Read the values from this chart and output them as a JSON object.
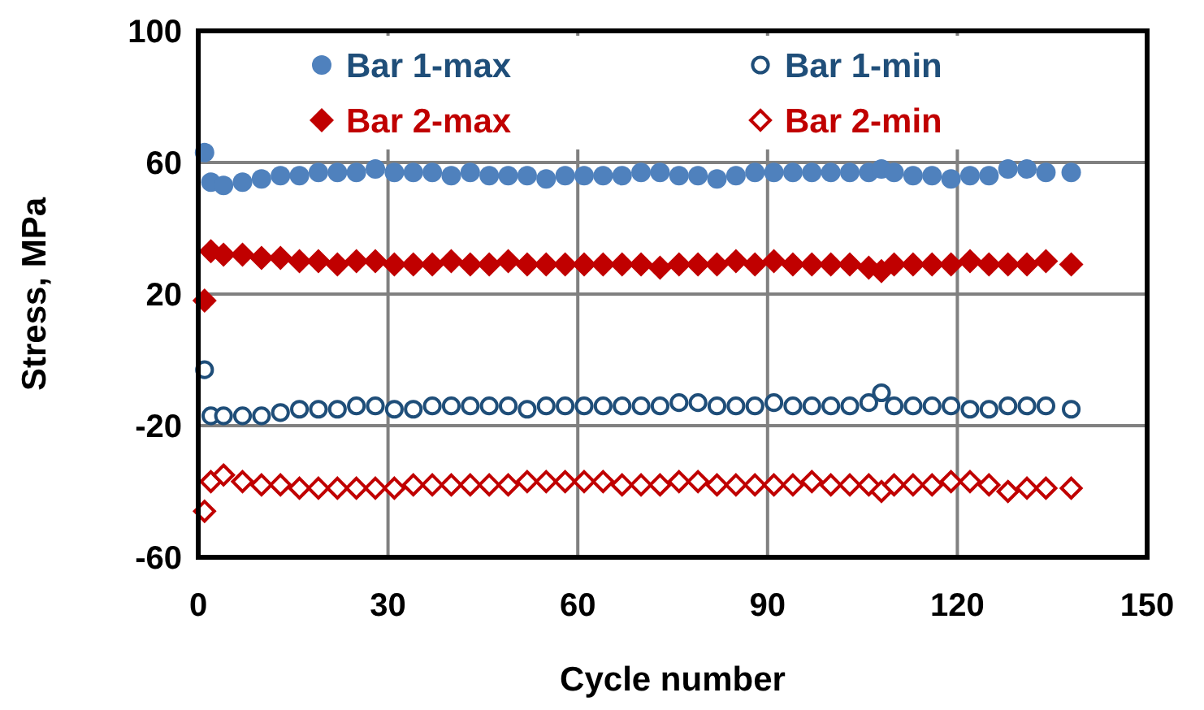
{
  "chart_data": {
    "type": "scatter",
    "xlabel": "Cycle number",
    "ylabel": "Stress, MPa",
    "x": [
      1,
      2,
      4,
      7,
      10,
      13,
      16,
      19,
      22,
      25,
      28,
      31,
      34,
      37,
      40,
      43,
      46,
      49,
      52,
      55,
      58,
      61,
      64,
      67,
      70,
      73,
      76,
      79,
      82,
      85,
      88,
      91,
      94,
      97,
      100,
      103,
      106,
      108,
      110,
      113,
      116,
      119,
      122,
      125,
      128,
      131,
      134,
      138
    ],
    "xlim": [
      0,
      150
    ],
    "xticks": [
      0,
      30,
      60,
      90,
      120,
      150
    ],
    "ylim": [
      -60,
      100
    ],
    "yticks": [
      -60,
      -20,
      20,
      60,
      100
    ],
    "grid": true,
    "legend": "top",
    "series": [
      {
        "name": "Bar 1-max",
        "color": "#4f81bd",
        "marker": "circle",
        "values": [
          63,
          54,
          53,
          54,
          55,
          56,
          56,
          57,
          57,
          57,
          58,
          57,
          57,
          57,
          56,
          57,
          56,
          56,
          56,
          55,
          56,
          56,
          56,
          56,
          57,
          57,
          56,
          56,
          55,
          56,
          57,
          57,
          57,
          57,
          57,
          57,
          57,
          58,
          57,
          56,
          56,
          55,
          56,
          56,
          58,
          58,
          57,
          57
        ]
      },
      {
        "name": "Bar 1-min",
        "color": "#1f4e79",
        "marker": "circle-open",
        "values": [
          -3,
          -17,
          -17,
          -17,
          -17,
          -16,
          -15,
          -15,
          -15,
          -14,
          -14,
          -15,
          -15,
          -14,
          -14,
          -14,
          -14,
          -14,
          -15,
          -14,
          -14,
          -14,
          -14,
          -14,
          -14,
          -14,
          -13,
          -13,
          -14,
          -14,
          -14,
          -13,
          -14,
          -14,
          -14,
          -14,
          -13,
          -10,
          -14,
          -14,
          -14,
          -14,
          -15,
          -15,
          -14,
          -14,
          -14,
          -15
        ]
      },
      {
        "name": "Bar 2-max",
        "color": "#c00000",
        "marker": "diamond",
        "values": [
          18,
          33,
          32,
          32,
          31,
          31,
          30,
          30,
          29,
          30,
          30,
          29,
          29,
          29,
          30,
          29,
          29,
          30,
          29,
          29,
          29,
          29,
          29,
          29,
          29,
          28,
          29,
          29,
          29,
          30,
          29,
          30,
          29,
          29,
          29,
          29,
          28,
          27,
          29,
          29,
          29,
          29,
          30,
          29,
          29,
          29,
          30,
          29
        ]
      },
      {
        "name": "Bar 2-min",
        "color": "#c00000",
        "marker": "diamond-open",
        "values": [
          -46,
          -37,
          -35,
          -37,
          -38,
          -38,
          -39,
          -39,
          -39,
          -39,
          -39,
          -39,
          -38,
          -38,
          -38,
          -38,
          -38,
          -38,
          -37,
          -37,
          -37,
          -37,
          -37,
          -38,
          -38,
          -38,
          -37,
          -37,
          -38,
          -38,
          -38,
          -38,
          -38,
          -37,
          -38,
          -38,
          -38,
          -40,
          -38,
          -38,
          -38,
          -37,
          -37,
          -38,
          -40,
          -39,
          -39,
          -39
        ]
      }
    ]
  }
}
